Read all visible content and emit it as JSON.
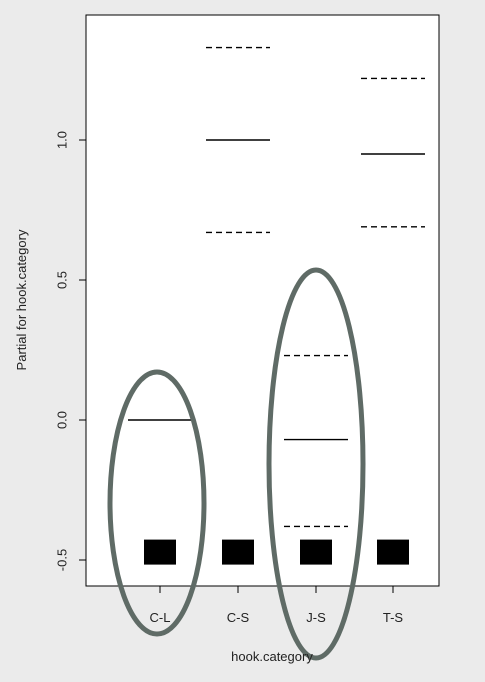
{
  "chart_data": {
    "type": "termplot",
    "xlabel": "hook.category",
    "ylabel": "Partial for hook.category",
    "ylim": [
      -0.57,
      1.42
    ],
    "yticks": [
      -0.5,
      0.0,
      0.5,
      1.0
    ],
    "ytick_labels": [
      "-0.5",
      "0.0",
      "0.5",
      "1.0"
    ],
    "categories": [
      "C-L",
      "C-S",
      "J-S",
      "T-S"
    ],
    "estimates": [
      0.0,
      1.0,
      -0.07,
      0.95
    ],
    "upper_se": [
      null,
      1.33,
      0.23,
      1.22
    ],
    "lower_se": [
      null,
      0.67,
      -0.38,
      0.69
    ],
    "rug_y": -0.47,
    "highlighted_categories": [
      "C-L",
      "J-S"
    ],
    "colors": {
      "background": "#ebebeb",
      "plot_background": "#ffffff",
      "marks": "#000000",
      "highlight_ellipse": "#5f6b66"
    }
  }
}
